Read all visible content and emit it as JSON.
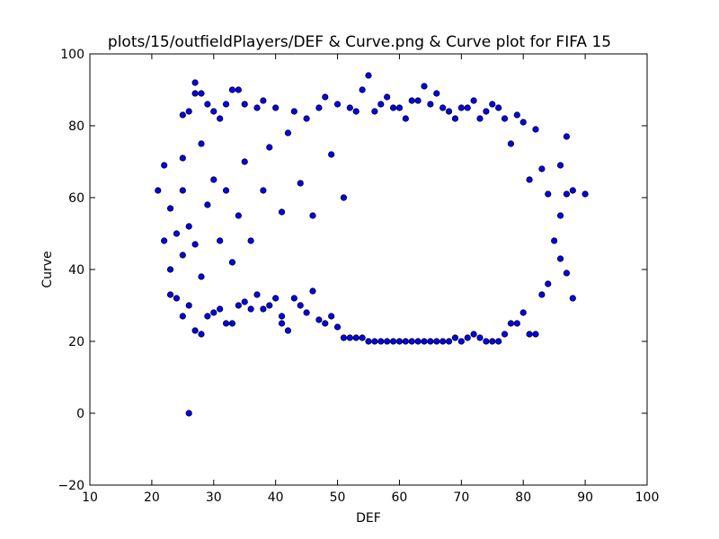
{
  "chart_data": {
    "type": "scatter",
    "title": "plots/15/outfieldPlayers/DEF & Curve.png & Curve plot for FIFA 15",
    "xlabel": "DEF",
    "ylabel": "Curve",
    "xlim": [
      10,
      100
    ],
    "ylim": [
      -20,
      100
    ],
    "xticks": [
      10,
      20,
      30,
      40,
      50,
      60,
      70,
      80,
      90,
      100
    ],
    "yticks": [
      -20,
      0,
      20,
      40,
      60,
      80,
      100
    ],
    "grid": false,
    "marker_color": "#0000ff",
    "marker_edge_color": "#000000",
    "series": [
      {
        "points": [
          [
            21,
            62
          ],
          [
            22,
            48
          ],
          [
            22,
            69
          ],
          [
            23,
            33
          ],
          [
            23,
            40
          ],
          [
            23,
            57
          ],
          [
            24,
            32
          ],
          [
            24,
            50
          ],
          [
            25,
            27
          ],
          [
            25,
            44
          ],
          [
            25,
            62
          ],
          [
            25,
            71
          ],
          [
            25,
            83
          ],
          [
            26,
            0
          ],
          [
            26,
            30
          ],
          [
            26,
            52
          ],
          [
            26,
            84
          ],
          [
            27,
            23
          ],
          [
            27,
            47
          ],
          [
            27,
            89
          ],
          [
            27,
            92
          ],
          [
            28,
            22
          ],
          [
            28,
            38
          ],
          [
            28,
            75
          ],
          [
            28,
            89
          ],
          [
            29,
            27
          ],
          [
            29,
            58
          ],
          [
            29,
            86
          ],
          [
            30,
            28
          ],
          [
            30,
            65
          ],
          [
            30,
            84
          ],
          [
            31,
            29
          ],
          [
            31,
            48
          ],
          [
            31,
            82
          ],
          [
            32,
            25
          ],
          [
            32,
            62
          ],
          [
            32,
            86
          ],
          [
            33,
            25
          ],
          [
            33,
            42
          ],
          [
            33,
            90
          ],
          [
            34,
            30
          ],
          [
            34,
            55
          ],
          [
            34,
            90
          ],
          [
            35,
            31
          ],
          [
            35,
            70
          ],
          [
            35,
            86
          ],
          [
            36,
            29
          ],
          [
            36,
            48
          ],
          [
            37,
            33
          ],
          [
            37,
            85
          ],
          [
            38,
            29
          ],
          [
            38,
            62
          ],
          [
            38,
            87
          ],
          [
            39,
            30
          ],
          [
            39,
            74
          ],
          [
            40,
            32
          ],
          [
            40,
            85
          ],
          [
            41,
            25
          ],
          [
            41,
            27
          ],
          [
            41,
            56
          ],
          [
            42,
            23
          ],
          [
            42,
            78
          ],
          [
            43,
            32
          ],
          [
            43,
            84
          ],
          [
            44,
            30
          ],
          [
            44,
            64
          ],
          [
            45,
            28
          ],
          [
            45,
            82
          ],
          [
            46,
            34
          ],
          [
            46,
            55
          ],
          [
            47,
            26
          ],
          [
            47,
            85
          ],
          [
            48,
            25
          ],
          [
            48,
            88
          ],
          [
            49,
            27
          ],
          [
            49,
            72
          ],
          [
            50,
            24
          ],
          [
            50,
            86
          ],
          [
            51,
            21
          ],
          [
            51,
            60
          ],
          [
            52,
            21
          ],
          [
            52,
            85
          ],
          [
            53,
            21
          ],
          [
            53,
            84
          ],
          [
            54,
            21
          ],
          [
            54,
            90
          ],
          [
            55,
            20
          ],
          [
            55,
            94
          ],
          [
            56,
            20
          ],
          [
            56,
            84
          ],
          [
            57,
            20
          ],
          [
            57,
            86
          ],
          [
            58,
            20
          ],
          [
            58,
            88
          ],
          [
            59,
            20
          ],
          [
            59,
            85
          ],
          [
            60,
            20
          ],
          [
            60,
            85
          ],
          [
            61,
            20
          ],
          [
            61,
            82
          ],
          [
            62,
            20
          ],
          [
            62,
            87
          ],
          [
            63,
            20
          ],
          [
            63,
            87
          ],
          [
            64,
            20
          ],
          [
            64,
            91
          ],
          [
            65,
            20
          ],
          [
            65,
            86
          ],
          [
            66,
            20
          ],
          [
            66,
            89
          ],
          [
            67,
            20
          ],
          [
            67,
            85
          ],
          [
            68,
            20
          ],
          [
            68,
            84
          ],
          [
            69,
            21
          ],
          [
            69,
            82
          ],
          [
            70,
            20
          ],
          [
            70,
            85
          ],
          [
            71,
            21
          ],
          [
            71,
            85
          ],
          [
            72,
            22
          ],
          [
            72,
            87
          ],
          [
            73,
            21
          ],
          [
            73,
            82
          ],
          [
            74,
            20
          ],
          [
            74,
            84
          ],
          [
            75,
            20
          ],
          [
            75,
            86
          ],
          [
            76,
            20
          ],
          [
            76,
            85
          ],
          [
            77,
            22
          ],
          [
            77,
            82
          ],
          [
            78,
            25
          ],
          [
            78,
            75
          ],
          [
            79,
            25
          ],
          [
            79,
            83
          ],
          [
            80,
            28
          ],
          [
            80,
            81
          ],
          [
            81,
            22
          ],
          [
            81,
            65
          ],
          [
            82,
            22
          ],
          [
            82,
            79
          ],
          [
            83,
            33
          ],
          [
            83,
            68
          ],
          [
            84,
            36
          ],
          [
            84,
            61
          ],
          [
            85,
            48
          ],
          [
            86,
            43
          ],
          [
            86,
            55
          ],
          [
            86,
            69
          ],
          [
            87,
            39
          ],
          [
            87,
            61
          ],
          [
            87,
            77
          ],
          [
            88,
            32
          ],
          [
            88,
            62
          ],
          [
            90,
            61
          ]
        ]
      }
    ]
  }
}
